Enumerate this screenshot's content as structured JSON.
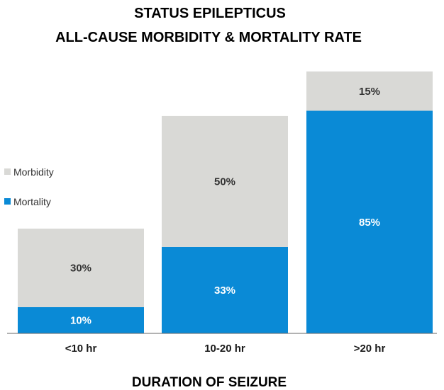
{
  "chart_data": {
    "type": "bar",
    "stacked": true,
    "title_lines": [
      "STATUS EPILEPTICUS",
      "ALL-CAUSE MORBIDITY & MORTALITY RATE"
    ],
    "xlabel": "DURATION OF SEIZURE",
    "ylabel": "",
    "categories": [
      "<10 hr",
      "10-20 hr",
      ">20 hr"
    ],
    "series": [
      {
        "name": "Mortality",
        "values": [
          10,
          33,
          85
        ],
        "labels": [
          "10%",
          "33%",
          "85%"
        ],
        "color": "#0a8ad6",
        "label_color": "#ffffff"
      },
      {
        "name": "Morbidity",
        "values": [
          30,
          50,
          15
        ],
        "labels": [
          "30%",
          "50%",
          "15%"
        ],
        "color": "#d9d9d6",
        "label_color": "#333333"
      }
    ],
    "legend": [
      {
        "name": "Morbidity",
        "color": "#d9d9d6"
      },
      {
        "name": "Mortality",
        "color": "#0a8ad6"
      }
    ],
    "legend_position": "left",
    "ylim": [
      0,
      100
    ],
    "grid": false
  }
}
